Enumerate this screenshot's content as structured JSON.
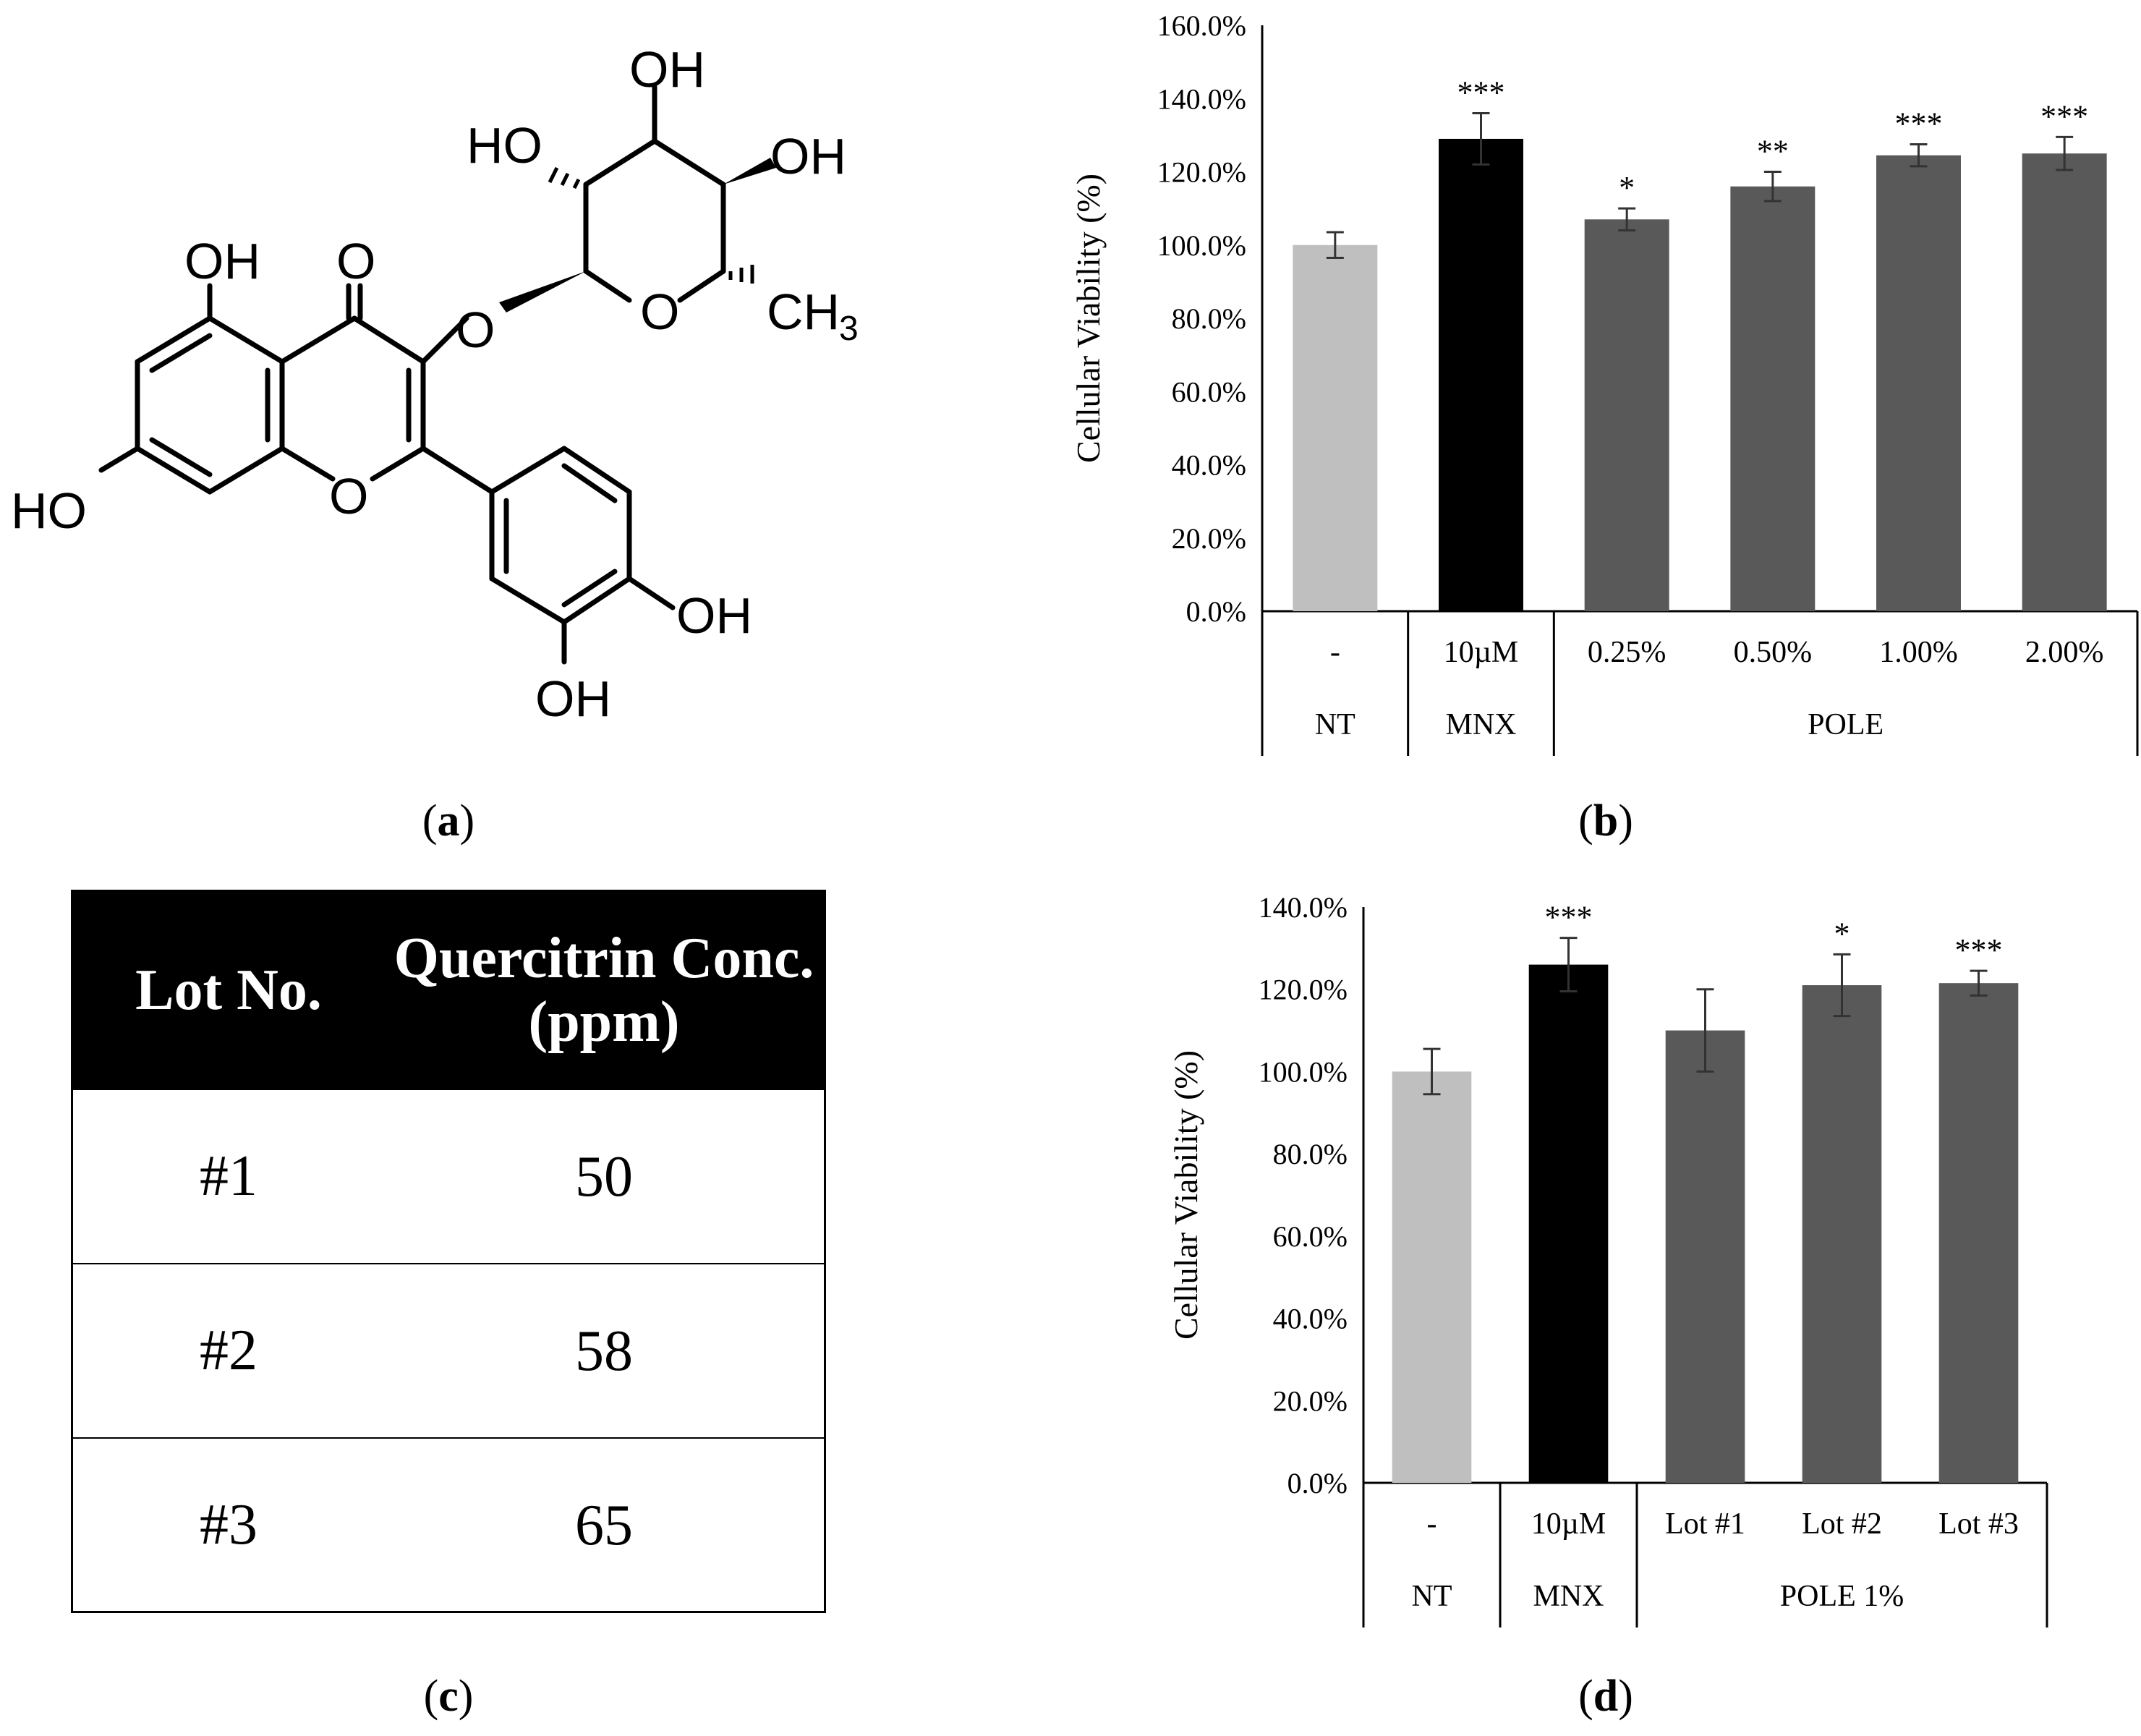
{
  "captions": {
    "a": "a",
    "b": "b",
    "c": "c",
    "d": "d"
  },
  "molecule": {
    "labels": {
      "oh_top": "OH",
      "ho_sugar": "HO",
      "oh_sugar_right": "OH",
      "oh_5": "OH",
      "carbonyl_o": "O",
      "ring_o_sugar": "O",
      "ch3": "CH",
      "ch3_sub": "3",
      "glycosidic_o": "O",
      "ho_7": "HO",
      "ring_o_chromone": "O",
      "oh_4p": "OH",
      "oh_3p": "OH"
    }
  },
  "table": {
    "headers": [
      "Lot No.",
      "Quercitrin Conc. (ppm)"
    ],
    "rows": [
      {
        "lot": "#1",
        "conc": "50"
      },
      {
        "lot": "#2",
        "conc": "58"
      },
      {
        "lot": "#3",
        "conc": "65"
      }
    ]
  },
  "chart_data": [
    {
      "panel": "b",
      "type": "bar",
      "ylabel": "Cellular Viability (%)",
      "ylim": [
        0,
        160
      ],
      "yticks": [
        "0.0%",
        "20.0%",
        "40.0%",
        "60.0%",
        "80.0%",
        "100.0%",
        "120.0%",
        "140.0%",
        "160.0%"
      ],
      "categories": [
        "-",
        "10µM",
        "0.25%",
        "0.50%",
        "1.00%",
        "2.00%"
      ],
      "groups": [
        {
          "label": "NT",
          "span": 1
        },
        {
          "label": "MNX",
          "span": 1
        },
        {
          "label": "POLE",
          "span": 4
        }
      ],
      "values": [
        100,
        129,
        107,
        116,
        124.5,
        125
      ],
      "errors": [
        3.5,
        7,
        3,
        4,
        3,
        4.5
      ],
      "significance": [
        "",
        "***",
        "*",
        "**",
        "***",
        "***"
      ],
      "colors": [
        "#bfbfbf",
        "#000000",
        "#595959",
        "#595959",
        "#595959",
        "#595959"
      ]
    },
    {
      "panel": "d",
      "type": "bar",
      "ylabel": "Cellular Viability (%)",
      "ylim": [
        0,
        140
      ],
      "yticks": [
        "0.0%",
        "20.0%",
        "40.0%",
        "60.0%",
        "80.0%",
        "100.0%",
        "120.0%",
        "140.0%"
      ],
      "categories": [
        "-",
        "10µM",
        "Lot #1",
        "Lot #2",
        "Lot #3"
      ],
      "groups": [
        {
          "label": "NT",
          "span": 1
        },
        {
          "label": "MNX",
          "span": 1
        },
        {
          "label": "POLE 1%",
          "span": 3
        }
      ],
      "values": [
        100,
        126,
        110,
        121,
        121.5
      ],
      "errors": [
        5.5,
        6.5,
        10,
        7.5,
        3
      ],
      "significance": [
        "",
        "***",
        "",
        "*",
        "***"
      ],
      "colors": [
        "#bfbfbf",
        "#000000",
        "#595959",
        "#595959",
        "#595959"
      ]
    }
  ]
}
